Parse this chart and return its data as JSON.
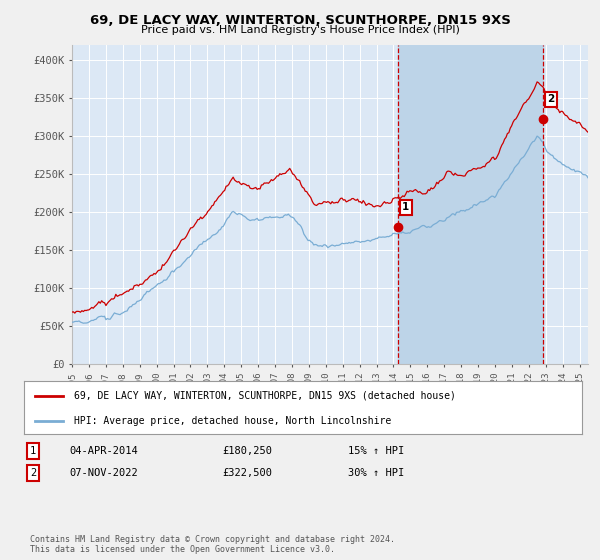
{
  "title": "69, DE LACY WAY, WINTERTON, SCUNTHORPE, DN15 9XS",
  "subtitle": "Price paid vs. HM Land Registry's House Price Index (HPI)",
  "ylim": [
    0,
    420000
  ],
  "xlim_start": 1995.0,
  "xlim_end": 2025.5,
  "background_color": "#f0f0f0",
  "plot_bg_color": "#dce8f5",
  "grid_color": "#ffffff",
  "red_line_color": "#cc0000",
  "blue_line_color": "#7aadd4",
  "highlight_fill_color": "#bdd4e8",
  "dashed_line_color": "#cc0000",
  "marker1_x": 2014.27,
  "marker1_y": 180250,
  "marker2_x": 2022.84,
  "marker2_y": 322500,
  "legend_red_label": "69, DE LACY WAY, WINTERTON, SCUNTHORPE, DN15 9XS (detached house)",
  "legend_blue_label": "HPI: Average price, detached house, North Lincolnshire",
  "sale1_date": "04-APR-2014",
  "sale1_price": "£180,250",
  "sale1_hpi": "15% ↑ HPI",
  "sale2_date": "07-NOV-2022",
  "sale2_price": "£322,500",
  "sale2_hpi": "30% ↑ HPI",
  "footer": "Contains HM Land Registry data © Crown copyright and database right 2024.\nThis data is licensed under the Open Government Licence v3.0.",
  "yticks": [
    0,
    50000,
    100000,
    150000,
    200000,
    250000,
    300000,
    350000,
    400000
  ],
  "ytick_labels": [
    "£0",
    "£50K",
    "£100K",
    "£150K",
    "£200K",
    "£250K",
    "£300K",
    "£350K",
    "£400K"
  ]
}
